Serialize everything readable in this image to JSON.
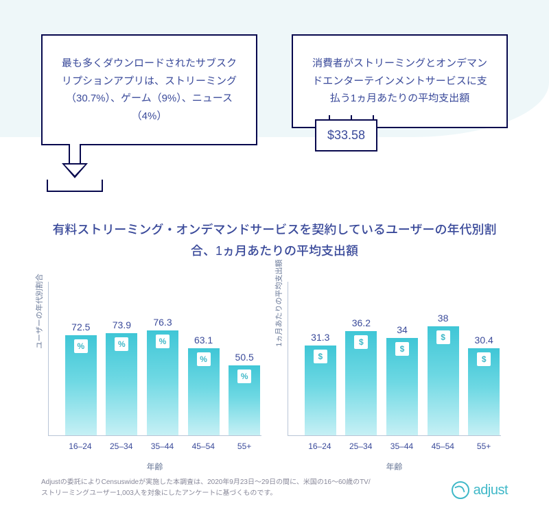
{
  "colors": {
    "bg_accent": "#eef7f9",
    "border_dark": "#07084d",
    "text_primary": "#3a4a9a",
    "axis": "#b8c4d6",
    "muted": "#6b7a99",
    "bar_top": "#3fc6d6",
    "bar_bottom": "#c6f0f5",
    "brand": "#3fb8c8"
  },
  "card_left": {
    "text": "最も多くダウンロードされたサブスクリプションアプリは、ストリーミング（30.7%）、ゲーム（9%）、ニュース（4%）"
  },
  "card_right": {
    "text": "消費者がストリーミングとオンデマンドエンターテインメントサービスに支払う1ヵ月あたりの平均支出額",
    "price": "$33.58"
  },
  "chart_title": "有料ストリーミング・オンデマンドサービスを契約しているユーザーの年代別割合、1ヵ月あたりの平均支出額",
  "categories": [
    "16–24",
    "25–34",
    "35–44",
    "45–54",
    "55+"
  ],
  "x_axis_label": "年齢",
  "chart_left": {
    "type": "bar",
    "y_label": "ユーザーの年代別割合",
    "unit": "%",
    "values": [
      72.5,
      73.9,
      76.3,
      63.1,
      50.5
    ],
    "ymax": 100
  },
  "chart_right": {
    "type": "bar",
    "y_label": "1ヵ月あたりの平均支出額",
    "unit": "$",
    "values": [
      31.3,
      36.2,
      34,
      38,
      30.4
    ],
    "ymax": 48
  },
  "footnote": "Adjustの委託によりCensuswideが実施した本調査は、2020年9月23日〜29日の間に、米国の16〜60歳のTV/ストリーミングユーザー1,003人を対象にしたアンケートに基づくものです。",
  "brand": "adjust"
}
